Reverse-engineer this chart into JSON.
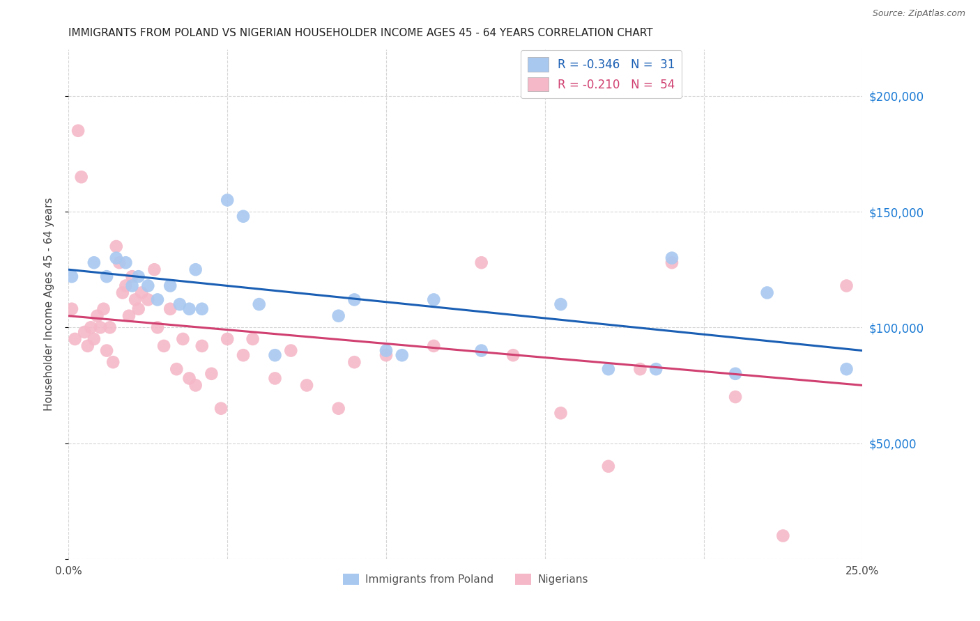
{
  "title": "IMMIGRANTS FROM POLAND VS NIGERIAN HOUSEHOLDER INCOME AGES 45 - 64 YEARS CORRELATION CHART",
  "source": "Source: ZipAtlas.com",
  "ylabel": "Householder Income Ages 45 - 64 years",
  "xlim": [
    0.0,
    0.25
  ],
  "ylim": [
    0,
    220000
  ],
  "legend_label_blue": "Immigrants from Poland",
  "legend_label_pink": "Nigerians",
  "blue_color": "#a8c8f0",
  "pink_color": "#f5b8c8",
  "line_blue": "#1a5fb4",
  "line_pink": "#d04070",
  "blue_x": [
    0.001,
    0.008,
    0.012,
    0.015,
    0.018,
    0.02,
    0.022,
    0.025,
    0.028,
    0.032,
    0.035,
    0.038,
    0.04,
    0.042,
    0.05,
    0.055,
    0.06,
    0.065,
    0.085,
    0.09,
    0.1,
    0.105,
    0.115,
    0.13,
    0.155,
    0.17,
    0.185,
    0.19,
    0.21,
    0.22,
    0.245
  ],
  "blue_y": [
    122000,
    128000,
    122000,
    130000,
    128000,
    118000,
    122000,
    118000,
    112000,
    118000,
    110000,
    108000,
    125000,
    108000,
    155000,
    148000,
    110000,
    88000,
    105000,
    112000,
    90000,
    88000,
    112000,
    90000,
    110000,
    82000,
    82000,
    130000,
    80000,
    115000,
    82000
  ],
  "pink_x": [
    0.001,
    0.002,
    0.003,
    0.004,
    0.005,
    0.006,
    0.007,
    0.008,
    0.009,
    0.01,
    0.011,
    0.012,
    0.013,
    0.014,
    0.015,
    0.016,
    0.017,
    0.018,
    0.019,
    0.02,
    0.021,
    0.022,
    0.023,
    0.025,
    0.027,
    0.028,
    0.03,
    0.032,
    0.034,
    0.036,
    0.038,
    0.04,
    0.042,
    0.045,
    0.048,
    0.05,
    0.055,
    0.058,
    0.065,
    0.07,
    0.075,
    0.085,
    0.09,
    0.1,
    0.115,
    0.13,
    0.14,
    0.155,
    0.17,
    0.18,
    0.19,
    0.21,
    0.225,
    0.245
  ],
  "pink_y": [
    108000,
    95000,
    185000,
    165000,
    98000,
    92000,
    100000,
    95000,
    105000,
    100000,
    108000,
    90000,
    100000,
    85000,
    135000,
    128000,
    115000,
    118000,
    105000,
    122000,
    112000,
    108000,
    115000,
    112000,
    125000,
    100000,
    92000,
    108000,
    82000,
    95000,
    78000,
    75000,
    92000,
    80000,
    65000,
    95000,
    88000,
    95000,
    78000,
    90000,
    75000,
    65000,
    85000,
    88000,
    92000,
    128000,
    88000,
    63000,
    40000,
    82000,
    128000,
    70000,
    10000,
    118000
  ]
}
